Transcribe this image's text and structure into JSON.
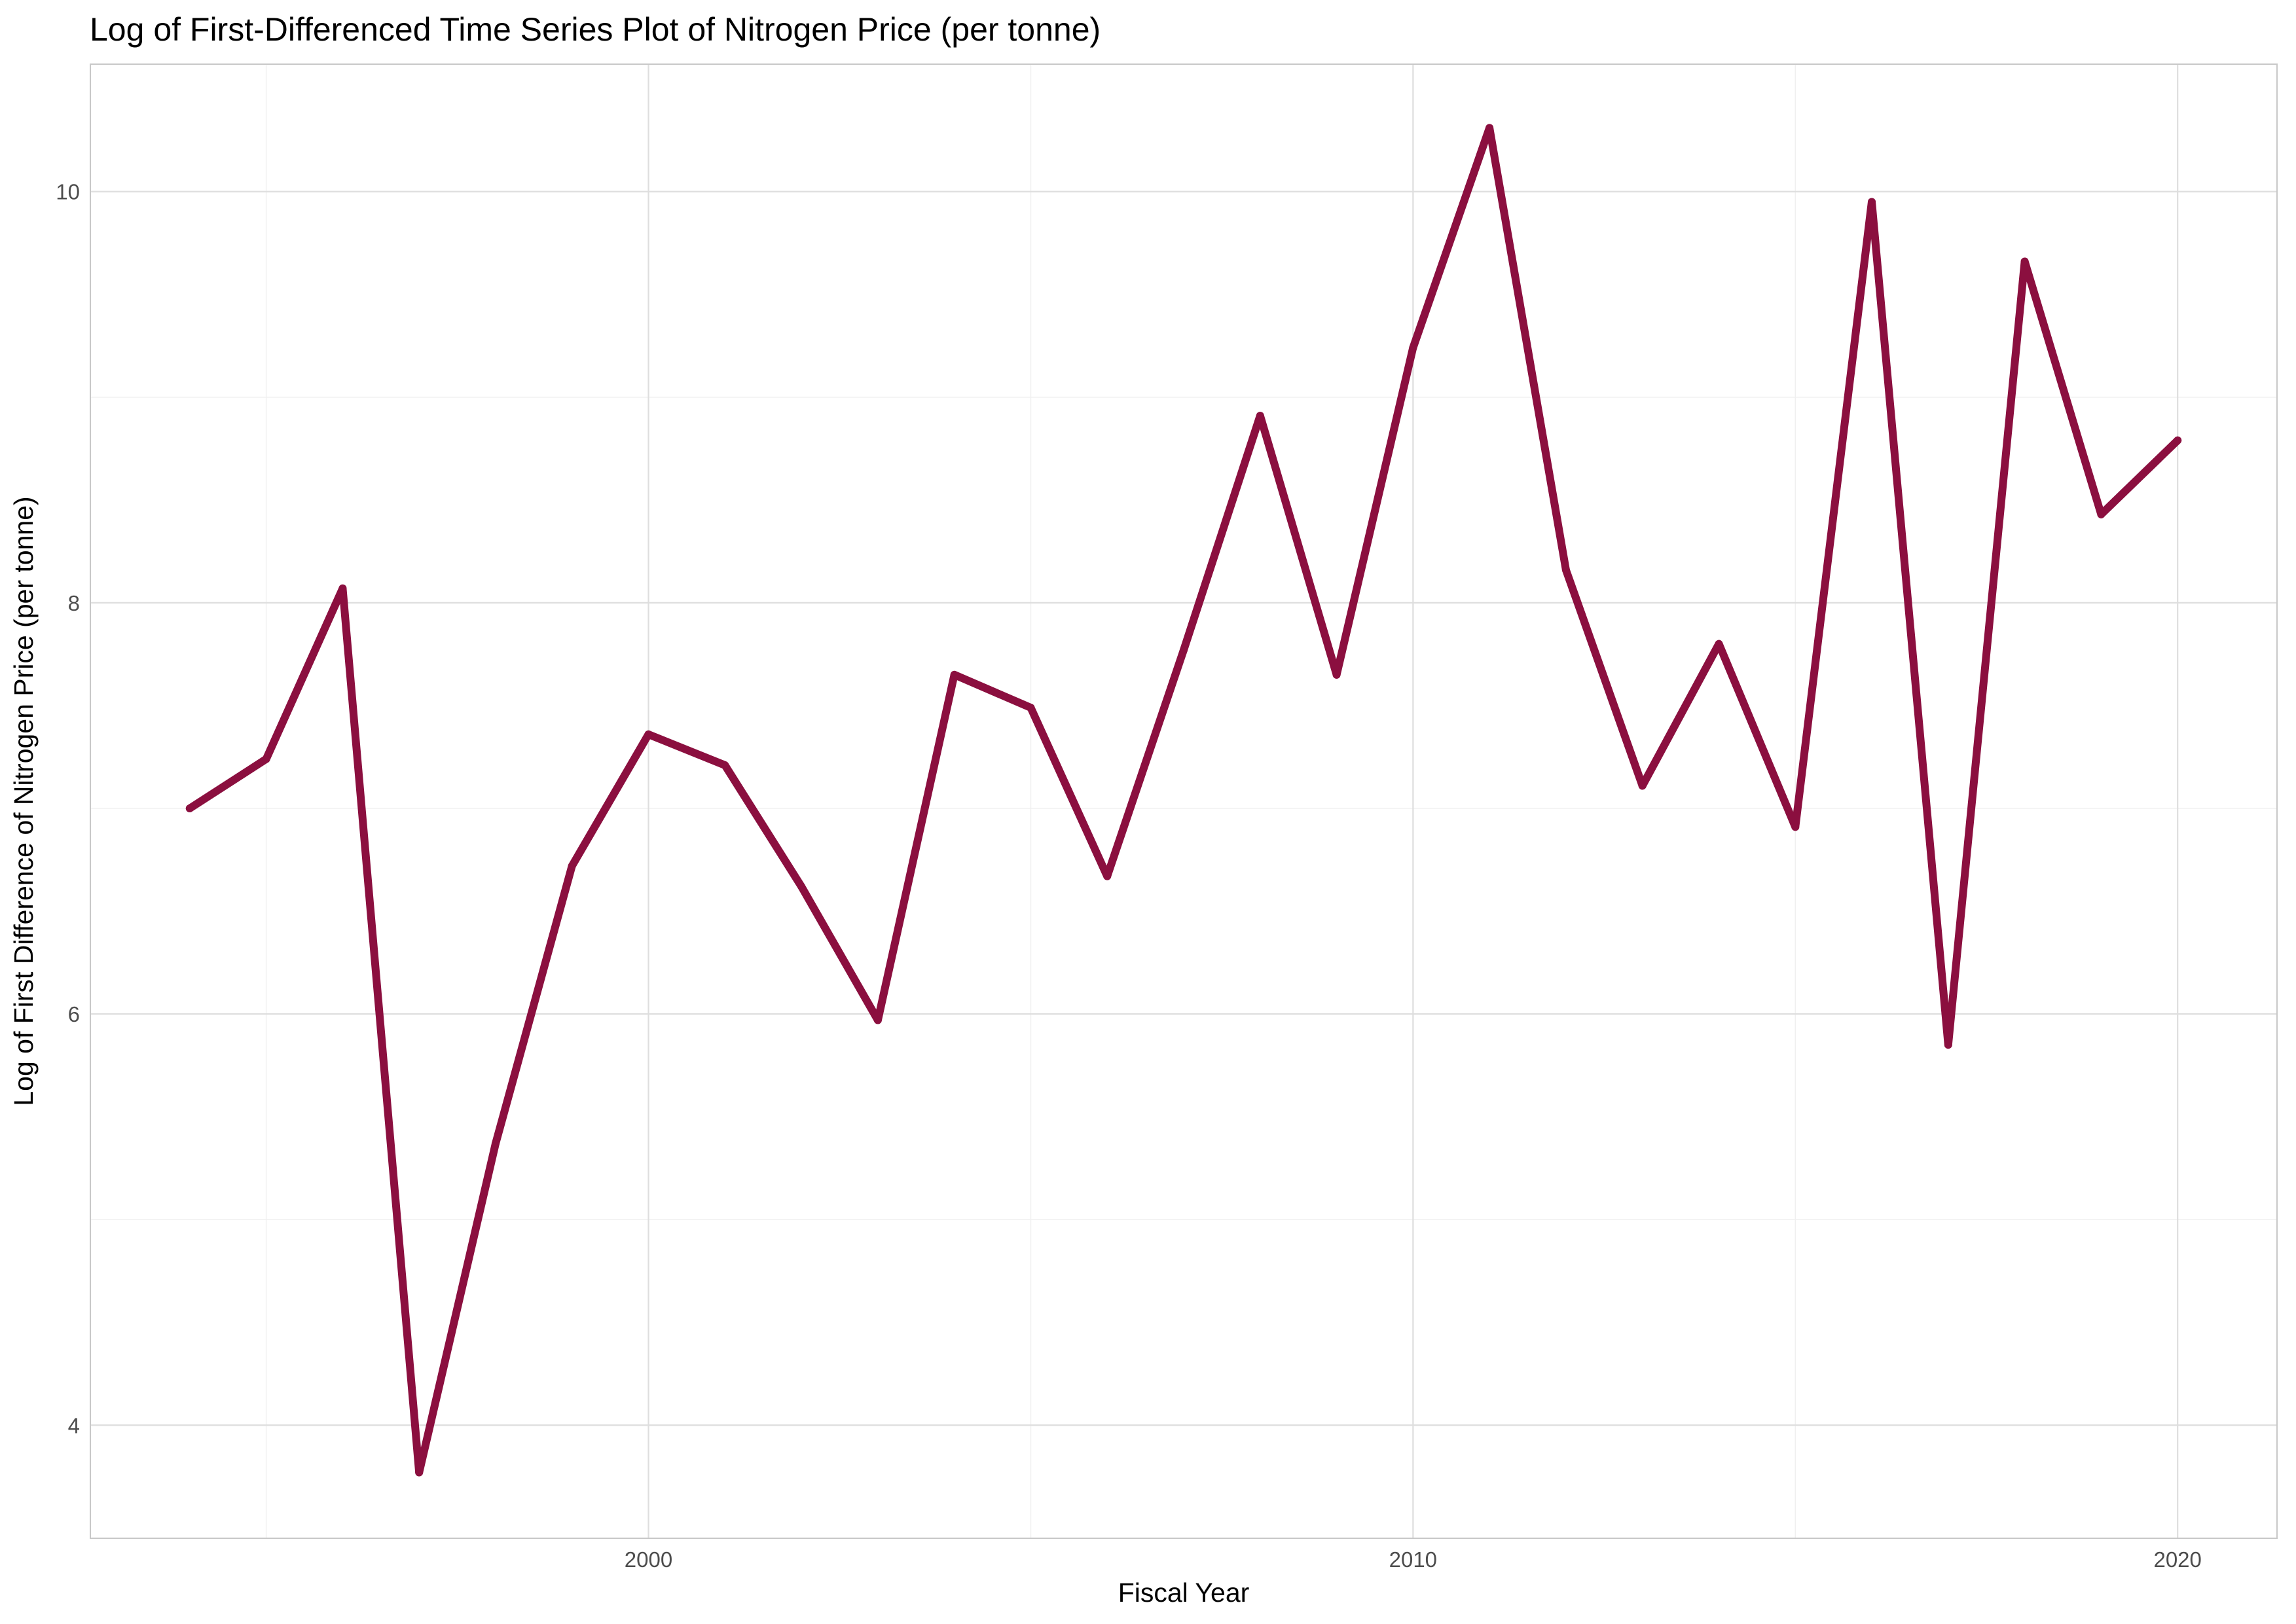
{
  "chart_data": {
    "type": "line",
    "title": "Log of First-Differenced Time Series Plot of Nitrogen Price (per tonne)",
    "xlabel": "Fiscal Year",
    "ylabel": "Log of First Difference of Nitrogen Price (per tonne)",
    "x": [
      1994,
      1995,
      1996,
      1997,
      1998,
      1999,
      2000,
      2001,
      2002,
      2003,
      2004,
      2005,
      2006,
      2007,
      2008,
      2009,
      2010,
      2011,
      2012,
      2013,
      2014,
      2015,
      2016,
      2017,
      2018,
      2019,
      2020
    ],
    "series": [
      {
        "values": [
          7.0,
          7.24,
          8.07,
          3.77,
          5.37,
          6.72,
          7.36,
          7.21,
          6.62,
          5.97,
          7.65,
          7.49,
          6.67,
          7.77,
          8.91,
          7.65,
          9.24,
          10.31,
          8.16,
          7.11,
          7.8,
          6.91,
          9.95,
          5.85,
          9.66,
          8.43,
          8.79
        ]
      }
    ],
    "xlim": [
      1992.7,
      2021.3
    ],
    "ylim": [
      3.45,
      10.62
    ],
    "x_ticks": [
      "2000",
      "2010",
      "2020"
    ],
    "y_ticks": [
      "4",
      "6",
      "8",
      "10"
    ],
    "line_color": "#8b0f3f",
    "grid": true,
    "theme": "light"
  }
}
